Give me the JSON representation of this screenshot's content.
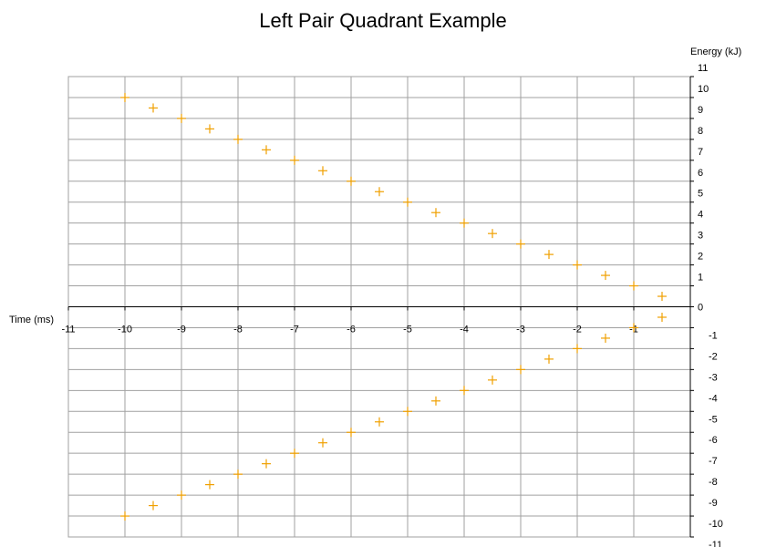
{
  "chart_data": {
    "type": "scatter",
    "title": "Left Pair Quadrant Example",
    "xlabel": "Time (ms)",
    "ylabel": "Energy (kJ)",
    "xlim": [
      -11,
      0
    ],
    "ylim": [
      -11,
      11
    ],
    "x_ticks": [
      -11,
      -10,
      -9,
      -8,
      -7,
      -6,
      -5,
      -4,
      -3,
      -2,
      -1
    ],
    "y_ticks": [
      -11,
      -10,
      -9,
      -8,
      -7,
      -6,
      -5,
      -4,
      -3,
      -2,
      -1,
      0,
      1,
      2,
      3,
      4,
      5,
      6,
      7,
      8,
      9,
      10,
      11
    ],
    "grid": true,
    "marker": "plus",
    "marker_color": "#f0a000",
    "grid_color": "#a0a0a0",
    "series": [
      {
        "x": [
          -10,
          -9.5,
          -9,
          -8.5,
          -8,
          -7.5,
          -7,
          -6.5,
          -6,
          -5.5,
          -5,
          -4.5,
          -4,
          -3.5,
          -3,
          -2.5,
          -2,
          -1.5,
          -1,
          -0.5
        ],
        "y": [
          10,
          9.5,
          9,
          8.5,
          8,
          7.5,
          7,
          6.5,
          6,
          5.5,
          5,
          4.5,
          4,
          3.5,
          3,
          2.5,
          2,
          1.5,
          1,
          0.5
        ]
      },
      {
        "x": [
          -10,
          -9.5,
          -9,
          -8.5,
          -8,
          -7.5,
          -7,
          -6.5,
          -6,
          -5.5,
          -5,
          -4.5,
          -4,
          -3.5,
          -3,
          -2.5,
          -2,
          -1.5,
          -1,
          -0.5
        ],
        "y": [
          -10,
          -9.5,
          -9,
          -8.5,
          -8,
          -7.5,
          -7,
          -6.5,
          -6,
          -5.5,
          -5,
          -4.5,
          -4,
          -3.5,
          -3,
          -2.5,
          -2,
          -1.5,
          -1,
          -0.5
        ]
      }
    ]
  }
}
